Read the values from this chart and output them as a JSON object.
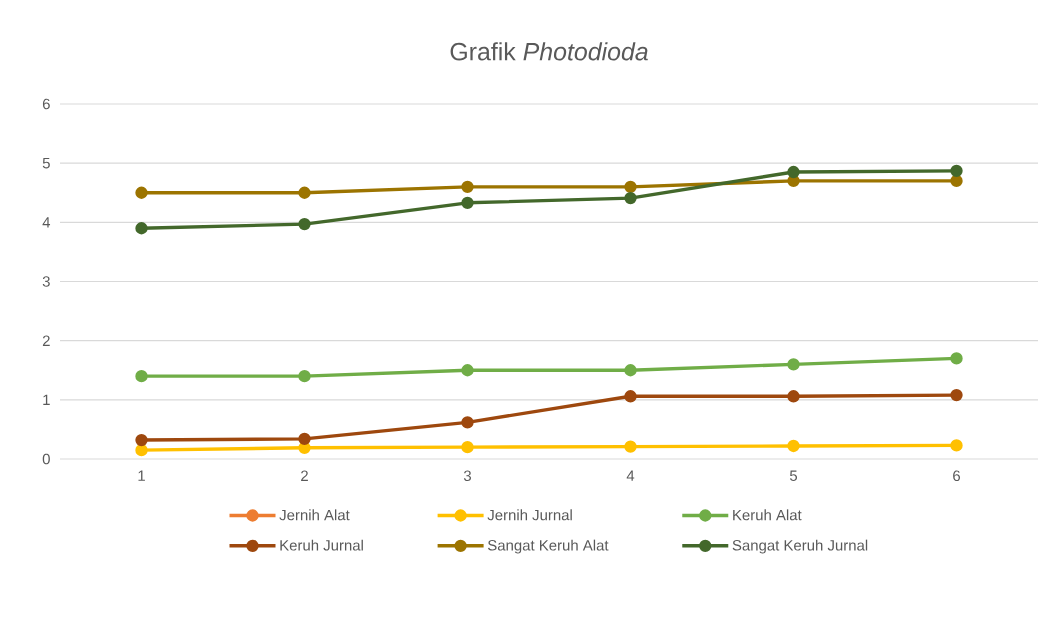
{
  "chart_data": {
    "type": "line",
    "title": "Grafik *Photodioda*",
    "categories": [
      "1",
      "2",
      "3",
      "4",
      "5",
      "6"
    ],
    "series": [
      {
        "name": "Jernih Alat",
        "color": "#ed7d31",
        "values": [
          null,
          null,
          null,
          null,
          null,
          null
        ]
      },
      {
        "name": "Jernih Jurnal",
        "color": "#ffc000",
        "values": [
          0.15,
          0.19,
          0.2,
          0.21,
          0.22,
          0.23
        ]
      },
      {
        "name": "Keruh Alat",
        "color": "#70ad47",
        "values": [
          1.4,
          1.4,
          1.5,
          1.5,
          1.6,
          1.7
        ]
      },
      {
        "name": "Keruh Jurnal",
        "color": "#9e480e",
        "values": [
          0.32,
          0.34,
          0.62,
          1.06,
          1.06,
          1.08
        ]
      },
      {
        "name": "Sangat Keruh Alat",
        "color": "#9c7400",
        "values": [
          4.5,
          4.5,
          4.6,
          4.6,
          4.7,
          4.7
        ]
      },
      {
        "name": "Sangat Keruh Jurnal",
        "color": "#43682b",
        "values": [
          3.9,
          3.97,
          4.33,
          4.41,
          4.85,
          4.87
        ]
      }
    ],
    "ylim": [
      0,
      6
    ],
    "yticks": [
      0,
      1,
      2,
      3,
      4,
      5,
      6
    ],
    "grid": "y",
    "legend": "bottom",
    "marker": "circle",
    "line_style": "solid"
  }
}
